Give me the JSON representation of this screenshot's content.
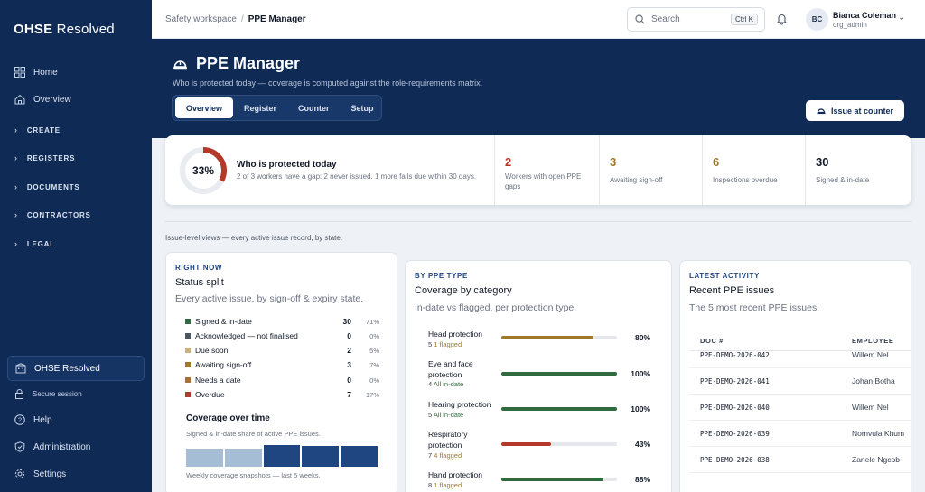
{
  "sidebar": {
    "logo_bold": "OHSE",
    "logo_light": " Resolved",
    "items": [
      {
        "label": "Home",
        "icon": "grid-icon"
      },
      {
        "label": "Overview",
        "icon": "home-icon"
      }
    ],
    "groups": [
      "CREATE",
      "REGISTERS",
      "DOCUMENTS",
      "CONTRACTORS",
      "LEGAL"
    ],
    "org_label": "OHSE Resolved",
    "secure_label": "Secure session",
    "bottom_items": [
      {
        "label": "Help",
        "icon": "help-icon"
      },
      {
        "label": "Administration",
        "icon": "shield-icon"
      },
      {
        "label": "Settings",
        "icon": "gear-icon"
      }
    ]
  },
  "topbar": {
    "breadcrumb_root": "Safety workspace",
    "breadcrumb_current": "PPE Manager",
    "search_placeholder": "Search",
    "search_shortcut": "Ctrl K",
    "user_initials": "BC",
    "user_name": "Bianca Coleman",
    "user_role": "org_admin"
  },
  "hero": {
    "title": "PPE Manager",
    "subtitle": "Who is protected today — coverage is computed against the role-requirements matrix.",
    "tabs": [
      "Overview",
      "Register",
      "Counter",
      "Setup"
    ],
    "active_tab": "Overview",
    "issue_button": "Issue at counter"
  },
  "summary": {
    "percent_label": "33%",
    "percent_value": 33,
    "title": "Who is protected today",
    "subtitle": "2 of 3 workers have a gap: 2 never issued. 1 more falls due within 30 days.",
    "kpis": [
      {
        "value": "2",
        "label": "Workers with open PPE gaps",
        "color": "#b3392b"
      },
      {
        "value": "3",
        "label": "Awaiting sign-off",
        "color": "#a0782a"
      },
      {
        "value": "6",
        "label": "Inspections overdue",
        "color": "#a0782a"
      },
      {
        "value": "30",
        "label": "Signed & in-date",
        "color": "#111827"
      }
    ]
  },
  "views_note": "Issue-level views — every active issue record, by state.",
  "status_card": {
    "eyebrow": "RIGHT NOW",
    "title": "Status split",
    "description": "Every active issue, by sign-off & expiry state.",
    "rows": [
      {
        "label": "Signed & in-date",
        "count": "30",
        "pct": "71%",
        "color": "#2f6b3f"
      },
      {
        "label": "Acknowledged — not finalised",
        "count": "0",
        "pct": "0%",
        "color": "#4b5563"
      },
      {
        "label": "Due soon",
        "count": "2",
        "pct": "5%",
        "color": "#c8b27a"
      },
      {
        "label": "Awaiting sign-off",
        "count": "3",
        "pct": "7%",
        "color": "#a0782a"
      },
      {
        "label": "Needs a date",
        "count": "0",
        "pct": "0%",
        "color": "#a8713a"
      },
      {
        "label": "Overdue",
        "count": "7",
        "pct": "17%",
        "color": "#b3392b"
      }
    ],
    "coverage_title": "Coverage over time",
    "coverage_sub": "Signed & in-date share of active PPE issues.",
    "coverage_foot": "Weekly coverage snapshots — last 5 weeks.",
    "coverage_weeks": [
      {
        "level": 0.25,
        "color": "#a6bdd6"
      },
      {
        "level": 0.25,
        "color": "#a6bdd6"
      },
      {
        "level": 1.0,
        "color": "#1f4680"
      },
      {
        "level": 0.8,
        "color": "#1f4680"
      },
      {
        "level": 0.8,
        "color": "#1f4680"
      }
    ]
  },
  "category_card": {
    "eyebrow": "BY PPE TYPE",
    "title": "Coverage by category",
    "description": "In-date vs flagged, per protection type.",
    "rows": [
      {
        "name": "Head protection",
        "count": "5",
        "flag": "1 flagged",
        "pct": "80%",
        "value": 0.8,
        "color": "#a0782a"
      },
      {
        "name": "Eye and face protection",
        "count": "4",
        "flag": "All in-date",
        "pct": "100%",
        "value": 1.0,
        "color": "#2f6b3f"
      },
      {
        "name": "Hearing protection",
        "count": "5",
        "flag": "All in-date",
        "pct": "100%",
        "value": 1.0,
        "color": "#2f6b3f"
      },
      {
        "name": "Respiratory protection",
        "count": "7",
        "flag": "4 flagged",
        "pct": "43%",
        "value": 0.43,
        "color": "#b3392b"
      },
      {
        "name": "Hand protection",
        "count": "8",
        "flag": "1 flagged",
        "pct": "88%",
        "value": 0.88,
        "color": "#2f6b3f"
      }
    ]
  },
  "activity_card": {
    "eyebrow": "LATEST ACTIVITY",
    "title": "Recent PPE issues",
    "description": "The 5 most recent PPE issues.",
    "col_doc": "DOC #",
    "col_employee": "EMPLOYEE",
    "rows": [
      {
        "doc": "PPE-DEMO-2026-042",
        "employee": "Willem Nel"
      },
      {
        "doc": "PPE-DEMO-2026-041",
        "employee": "Johan Botha"
      },
      {
        "doc": "PPE-DEMO-2026-040",
        "employee": "Willem Nel"
      },
      {
        "doc": "PPE-DEMO-2026-039",
        "employee": "Nomvula Khum"
      },
      {
        "doc": "PPE-DEMO-2026-038",
        "employee": "Zanele Ngcob"
      }
    ]
  }
}
